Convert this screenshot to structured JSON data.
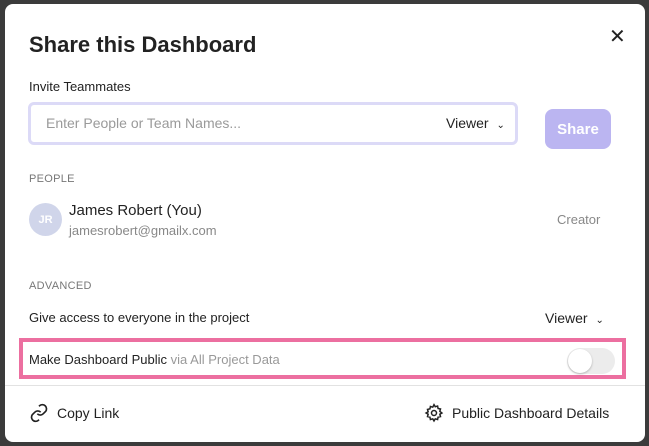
{
  "modal": {
    "title": "Share this Dashboard",
    "close_icon": "close-icon",
    "invite": {
      "label": "Invite Teammates",
      "placeholder": "Enter People or Team Names...",
      "value": "",
      "role": "Viewer",
      "share_label": "Share",
      "share_color": "#bbb5f1"
    },
    "people": {
      "section_label": "PEOPLE",
      "items": [
        {
          "initials": "JR",
          "name": "James Robert (You)",
          "email": "jamesrobert@gmailx.com",
          "role": "Creator"
        }
      ]
    },
    "advanced": {
      "section_label": "ADVANCED",
      "project_access_label": "Give access to everyone in the project",
      "project_access_role": "Viewer",
      "public_label": "Make Dashboard Public",
      "public_sublabel": "via All Project Data",
      "public_enabled": false,
      "highlight_color": "#ec6fa0"
    },
    "footer": {
      "copy_link_label": "Copy Link",
      "details_label": "Public Dashboard Details"
    }
  }
}
